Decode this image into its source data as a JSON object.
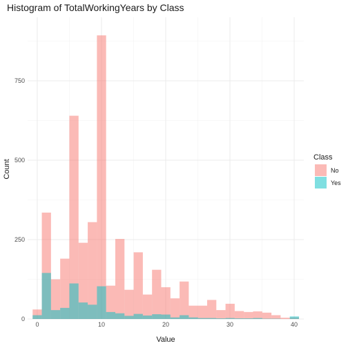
{
  "chart_data": {
    "type": "bar",
    "title": "Histogram of TotalWorkingYears by Class",
    "xlabel": "Value",
    "ylabel": "Count",
    "xlim": [
      -1.5,
      41.5
    ],
    "ylim": [
      0,
      950
    ],
    "xticks": [
      0,
      10,
      20,
      30,
      40
    ],
    "yticks": [
      0,
      250,
      500,
      750
    ],
    "grid": true,
    "legend": {
      "title": "Class",
      "position": "right"
    },
    "bin_width": 1.43,
    "series": [
      {
        "name": "No",
        "color": "#F8766D",
        "bins": [
          {
            "x0": -0.72,
            "x1": 0.71,
            "value": 30
          },
          {
            "x0": 0.71,
            "x1": 2.14,
            "value": 335
          },
          {
            "x0": 2.14,
            "x1": 3.57,
            "value": 125
          },
          {
            "x0": 3.57,
            "x1": 5.0,
            "value": 190
          },
          {
            "x0": 5.0,
            "x1": 6.43,
            "value": 640
          },
          {
            "x0": 6.43,
            "x1": 7.86,
            "value": 240
          },
          {
            "x0": 7.86,
            "x1": 9.29,
            "value": 305
          },
          {
            "x0": 9.29,
            "x1": 10.72,
            "value": 893
          },
          {
            "x0": 10.72,
            "x1": 12.15,
            "value": 105
          },
          {
            "x0": 12.15,
            "x1": 13.58,
            "value": 252
          },
          {
            "x0": 13.58,
            "x1": 15.01,
            "value": 92
          },
          {
            "x0": 15.01,
            "x1": 16.44,
            "value": 210
          },
          {
            "x0": 16.44,
            "x1": 17.87,
            "value": 77
          },
          {
            "x0": 17.87,
            "x1": 19.3,
            "value": 155
          },
          {
            "x0": 19.3,
            "x1": 20.73,
            "value": 100
          },
          {
            "x0": 20.73,
            "x1": 22.16,
            "value": 65
          },
          {
            "x0": 22.16,
            "x1": 23.59,
            "value": 118
          },
          {
            "x0": 23.59,
            "x1": 25.02,
            "value": 42
          },
          {
            "x0": 25.02,
            "x1": 26.45,
            "value": 42
          },
          {
            "x0": 26.45,
            "x1": 27.88,
            "value": 60
          },
          {
            "x0": 27.88,
            "x1": 29.31,
            "value": 28
          },
          {
            "x0": 29.31,
            "x1": 30.74,
            "value": 48
          },
          {
            "x0": 30.74,
            "x1": 32.17,
            "value": 25
          },
          {
            "x0": 32.17,
            "x1": 33.6,
            "value": 22
          },
          {
            "x0": 33.6,
            "x1": 35.03,
            "value": 24
          },
          {
            "x0": 35.03,
            "x1": 36.46,
            "value": 20
          },
          {
            "x0": 36.46,
            "x1": 37.89,
            "value": 12
          },
          {
            "x0": 37.89,
            "x1": 39.32,
            "value": 4
          },
          {
            "x0": 39.32,
            "x1": 40.75,
            "value": 5
          }
        ]
      },
      {
        "name": "Yes",
        "color": "#00BFC4",
        "bins": [
          {
            "x0": -0.72,
            "x1": 0.71,
            "value": 12
          },
          {
            "x0": 0.71,
            "x1": 2.14,
            "value": 145
          },
          {
            "x0": 2.14,
            "x1": 3.57,
            "value": 28
          },
          {
            "x0": 3.57,
            "x1": 5.0,
            "value": 35
          },
          {
            "x0": 5.0,
            "x1": 6.43,
            "value": 112
          },
          {
            "x0": 6.43,
            "x1": 7.86,
            "value": 52
          },
          {
            "x0": 7.86,
            "x1": 9.29,
            "value": 45
          },
          {
            "x0": 9.29,
            "x1": 10.72,
            "value": 103
          },
          {
            "x0": 10.72,
            "x1": 12.15,
            "value": 22
          },
          {
            "x0": 12.15,
            "x1": 13.58,
            "value": 18
          },
          {
            "x0": 13.58,
            "x1": 15.01,
            "value": 10
          },
          {
            "x0": 15.01,
            "x1": 16.44,
            "value": 16
          },
          {
            "x0": 16.44,
            "x1": 17.87,
            "value": 11
          },
          {
            "x0": 17.87,
            "x1": 19.3,
            "value": 15
          },
          {
            "x0": 19.3,
            "x1": 20.73,
            "value": 14
          },
          {
            "x0": 20.73,
            "x1": 22.16,
            "value": 5
          },
          {
            "x0": 22.16,
            "x1": 23.59,
            "value": 12
          },
          {
            "x0": 23.59,
            "x1": 25.02,
            "value": 5
          },
          {
            "x0": 25.02,
            "x1": 26.45,
            "value": 3
          },
          {
            "x0": 26.45,
            "x1": 27.88,
            "value": 3
          },
          {
            "x0": 27.88,
            "x1": 29.31,
            "value": 2
          },
          {
            "x0": 29.31,
            "x1": 30.74,
            "value": 3
          },
          {
            "x0": 30.74,
            "x1": 32.17,
            "value": 2
          },
          {
            "x0": 32.17,
            "x1": 33.6,
            "value": 2
          },
          {
            "x0": 33.6,
            "x1": 35.03,
            "value": 3
          },
          {
            "x0": 35.03,
            "x1": 36.46,
            "value": 1
          },
          {
            "x0": 36.46,
            "x1": 37.89,
            "value": 1
          },
          {
            "x0": 37.89,
            "x1": 39.32,
            "value": 0
          },
          {
            "x0": 39.32,
            "x1": 40.75,
            "value": 8
          }
        ]
      }
    ]
  }
}
